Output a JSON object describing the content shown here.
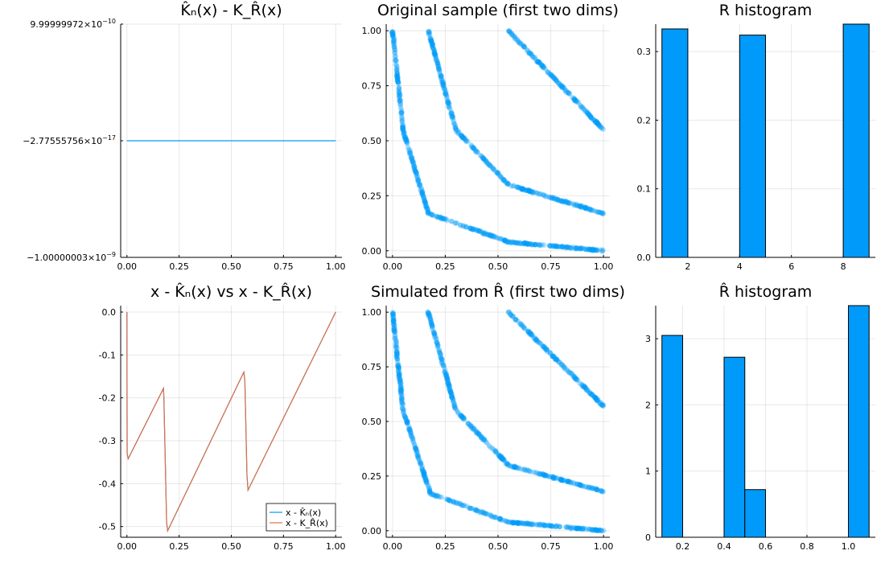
{
  "chart_data": [
    {
      "id": "p1",
      "type": "line",
      "title": "K̂ₙ(x) - K_R̂(x)",
      "xlim": [
        -0.03,
        1.03
      ],
      "ylim": [
        -1.00000003e-09,
        9.99999972e-10
      ],
      "xticks": [
        0,
        0.25,
        0.5,
        0.75,
        1.0
      ],
      "xtick_labels": [
        "0.00",
        "0.25",
        "0.50",
        "0.75",
        "1.00"
      ],
      "yticks": [
        -1.00000003e-09,
        -2.77555756e-17,
        9.99999972e-10
      ],
      "ytick_labels": [
        {
          "mantissa": "−1.00000003×10",
          "exp": "−9"
        },
        {
          "mantissa": "−2.77555756×10",
          "exp": "−17"
        },
        {
          "mantissa": "9.99999972×10",
          "exp": "−10"
        }
      ],
      "series": [
        {
          "x": [
            0.0,
            1.0
          ],
          "y": [
            -2.77555756e-17,
            -2.77555756e-17
          ],
          "color": "#009AFA"
        }
      ],
      "grid": true
    },
    {
      "id": "p2",
      "type": "scatter",
      "title": "Original sample (first two dims)",
      "xlim": [
        -0.03,
        1.03
      ],
      "ylim": [
        -0.03,
        1.03
      ],
      "xticks": [
        0,
        0.25,
        0.5,
        0.75,
        1.0
      ],
      "xtick_labels": [
        "0.00",
        "0.25",
        "0.50",
        "0.75",
        "1.00"
      ],
      "yticks": [
        0,
        0.25,
        0.5,
        0.75,
        1.0
      ],
      "ytick_labels": [
        "0.00",
        "0.25",
        "0.50",
        "0.75",
        "1.00"
      ],
      "point_color": "#009AFA",
      "point_opacity": 0.3,
      "curves": [
        {
          "x": [
            0.0,
            0.05,
            0.17,
            0.55,
            1.0
          ],
          "y": [
            1.0,
            0.55,
            0.17,
            0.04,
            0.0
          ]
        },
        {
          "x": [
            0.17,
            0.3,
            0.55,
            1.0
          ],
          "y": [
            1.0,
            0.55,
            0.3,
            0.17
          ]
        },
        {
          "x": [
            0.55,
            1.0
          ],
          "y": [
            1.0,
            0.55
          ]
        }
      ],
      "grid": true
    },
    {
      "id": "p3",
      "type": "bar",
      "title": "R histogram",
      "xlim": [
        0.76,
        9.24
      ],
      "ylim": [
        0,
        0.34
      ],
      "xticks": [
        2,
        4,
        6,
        8
      ],
      "xtick_labels": [
        "2",
        "4",
        "6",
        "8"
      ],
      "yticks": [
        0,
        0.1,
        0.2,
        0.3
      ],
      "ytick_labels": [
        "0.0",
        "0.1",
        "0.2",
        "0.3"
      ],
      "bins": [
        {
          "x0": 1,
          "x1": 2,
          "value": 0.333
        },
        {
          "x0": 2,
          "x1": 3,
          "value": 0.0
        },
        {
          "x0": 3,
          "x1": 4,
          "value": 0.0
        },
        {
          "x0": 4,
          "x1": 5,
          "value": 0.324
        },
        {
          "x0": 5,
          "x1": 6,
          "value": 0.0
        },
        {
          "x0": 6,
          "x1": 7,
          "value": 0.0
        },
        {
          "x0": 7,
          "x1": 8,
          "value": 0.0
        },
        {
          "x0": 8,
          "x1": 9,
          "value": 0.34
        }
      ],
      "bar_color": "#009AFA",
      "grid": true
    },
    {
      "id": "p4",
      "type": "line",
      "title": "x - K̂ₙ(x) vs x - K_R̂(x)",
      "xlim": [
        -0.03,
        1.03
      ],
      "ylim": [
        -0.525,
        0.015
      ],
      "xticks": [
        0,
        0.25,
        0.5,
        0.75,
        1.0
      ],
      "xtick_labels": [
        "0.00",
        "0.25",
        "0.50",
        "0.75",
        "1.00"
      ],
      "yticks": [
        0,
        -0.1,
        -0.2,
        -0.3,
        -0.4,
        -0.5
      ],
      "ytick_labels": [
        "0.0",
        "-0.1",
        "-0.2",
        "-0.3",
        "-0.4",
        "-0.5"
      ],
      "series": [
        {
          "name": "x - K̂ₙ(x)",
          "color": "#009AFA",
          "x": [
            0.0,
            0.001,
            0.006,
            0.175,
            0.177,
            0.19,
            0.195,
            0.56,
            0.565,
            0.575,
            0.58,
            1.0
          ],
          "y": [
            0.0,
            -0.33,
            -0.342,
            -0.178,
            -0.2,
            -0.49,
            -0.51,
            -0.14,
            -0.16,
            -0.38,
            -0.415,
            0.0
          ]
        },
        {
          "name": "x - K_R̂(x)",
          "color": "#E26F46",
          "x": [
            0.0,
            0.001,
            0.006,
            0.175,
            0.177,
            0.19,
            0.195,
            0.56,
            0.565,
            0.575,
            0.58,
            1.0
          ],
          "y": [
            0.0,
            -0.33,
            -0.342,
            -0.178,
            -0.2,
            -0.49,
            -0.51,
            -0.14,
            -0.16,
            -0.38,
            -0.415,
            0.0
          ]
        }
      ],
      "legend": "bottom-right",
      "grid": true
    },
    {
      "id": "p5",
      "type": "scatter",
      "title": "Simulated from R̂ (first two dims)",
      "xlim": [
        -0.03,
        1.03
      ],
      "ylim": [
        -0.03,
        1.03
      ],
      "xticks": [
        0,
        0.25,
        0.5,
        0.75,
        1.0
      ],
      "xtick_labels": [
        "0.00",
        "0.25",
        "0.50",
        "0.75",
        "1.00"
      ],
      "yticks": [
        0,
        0.25,
        0.5,
        0.75,
        1.0
      ],
      "ytick_labels": [
        "0.00",
        "0.25",
        "0.50",
        "0.75",
        "1.00"
      ],
      "point_color": "#009AFA",
      "point_opacity": 0.3,
      "curves": [
        {
          "x": [
            0.0,
            0.05,
            0.18,
            0.55,
            1.0
          ],
          "y": [
            1.0,
            0.55,
            0.17,
            0.04,
            0.0
          ]
        },
        {
          "x": [
            0.17,
            0.3,
            0.55,
            1.0
          ],
          "y": [
            1.0,
            0.55,
            0.3,
            0.18
          ]
        },
        {
          "x": [
            0.55,
            1.0
          ],
          "y": [
            1.0,
            0.57
          ]
        }
      ],
      "grid": true
    },
    {
      "id": "p6",
      "type": "bar",
      "title": "R̂ histogram",
      "xlim": [
        0.07,
        1.13
      ],
      "ylim": [
        0,
        3.5
      ],
      "xticks": [
        0.2,
        0.4,
        0.6,
        0.8,
        1.0
      ],
      "xtick_labels": [
        "0.2",
        "0.4",
        "0.6",
        "0.8",
        "1.0"
      ],
      "yticks": [
        0,
        1,
        2,
        3
      ],
      "ytick_labels": [
        "0",
        "1",
        "2",
        "3"
      ],
      "bins": [
        {
          "x0": 0.1,
          "x1": 0.2,
          "value": 3.05
        },
        {
          "x0": 0.2,
          "x1": 0.3,
          "value": 0.0
        },
        {
          "x0": 0.3,
          "x1": 0.4,
          "value": 0.0
        },
        {
          "x0": 0.4,
          "x1": 0.5,
          "value": 2.72
        },
        {
          "x0": 0.5,
          "x1": 0.6,
          "value": 0.72
        },
        {
          "x0": 0.6,
          "x1": 0.7,
          "value": 0.0
        },
        {
          "x0": 0.7,
          "x1": 0.8,
          "value": 0.0
        },
        {
          "x0": 0.8,
          "x1": 0.9,
          "value": 0.0
        },
        {
          "x0": 0.9,
          "x1": 1.0,
          "value": 0.0
        },
        {
          "x0": 1.0,
          "x1": 1.1,
          "value": 3.5
        }
      ],
      "bar_color": "#009AFA",
      "grid": true
    }
  ]
}
